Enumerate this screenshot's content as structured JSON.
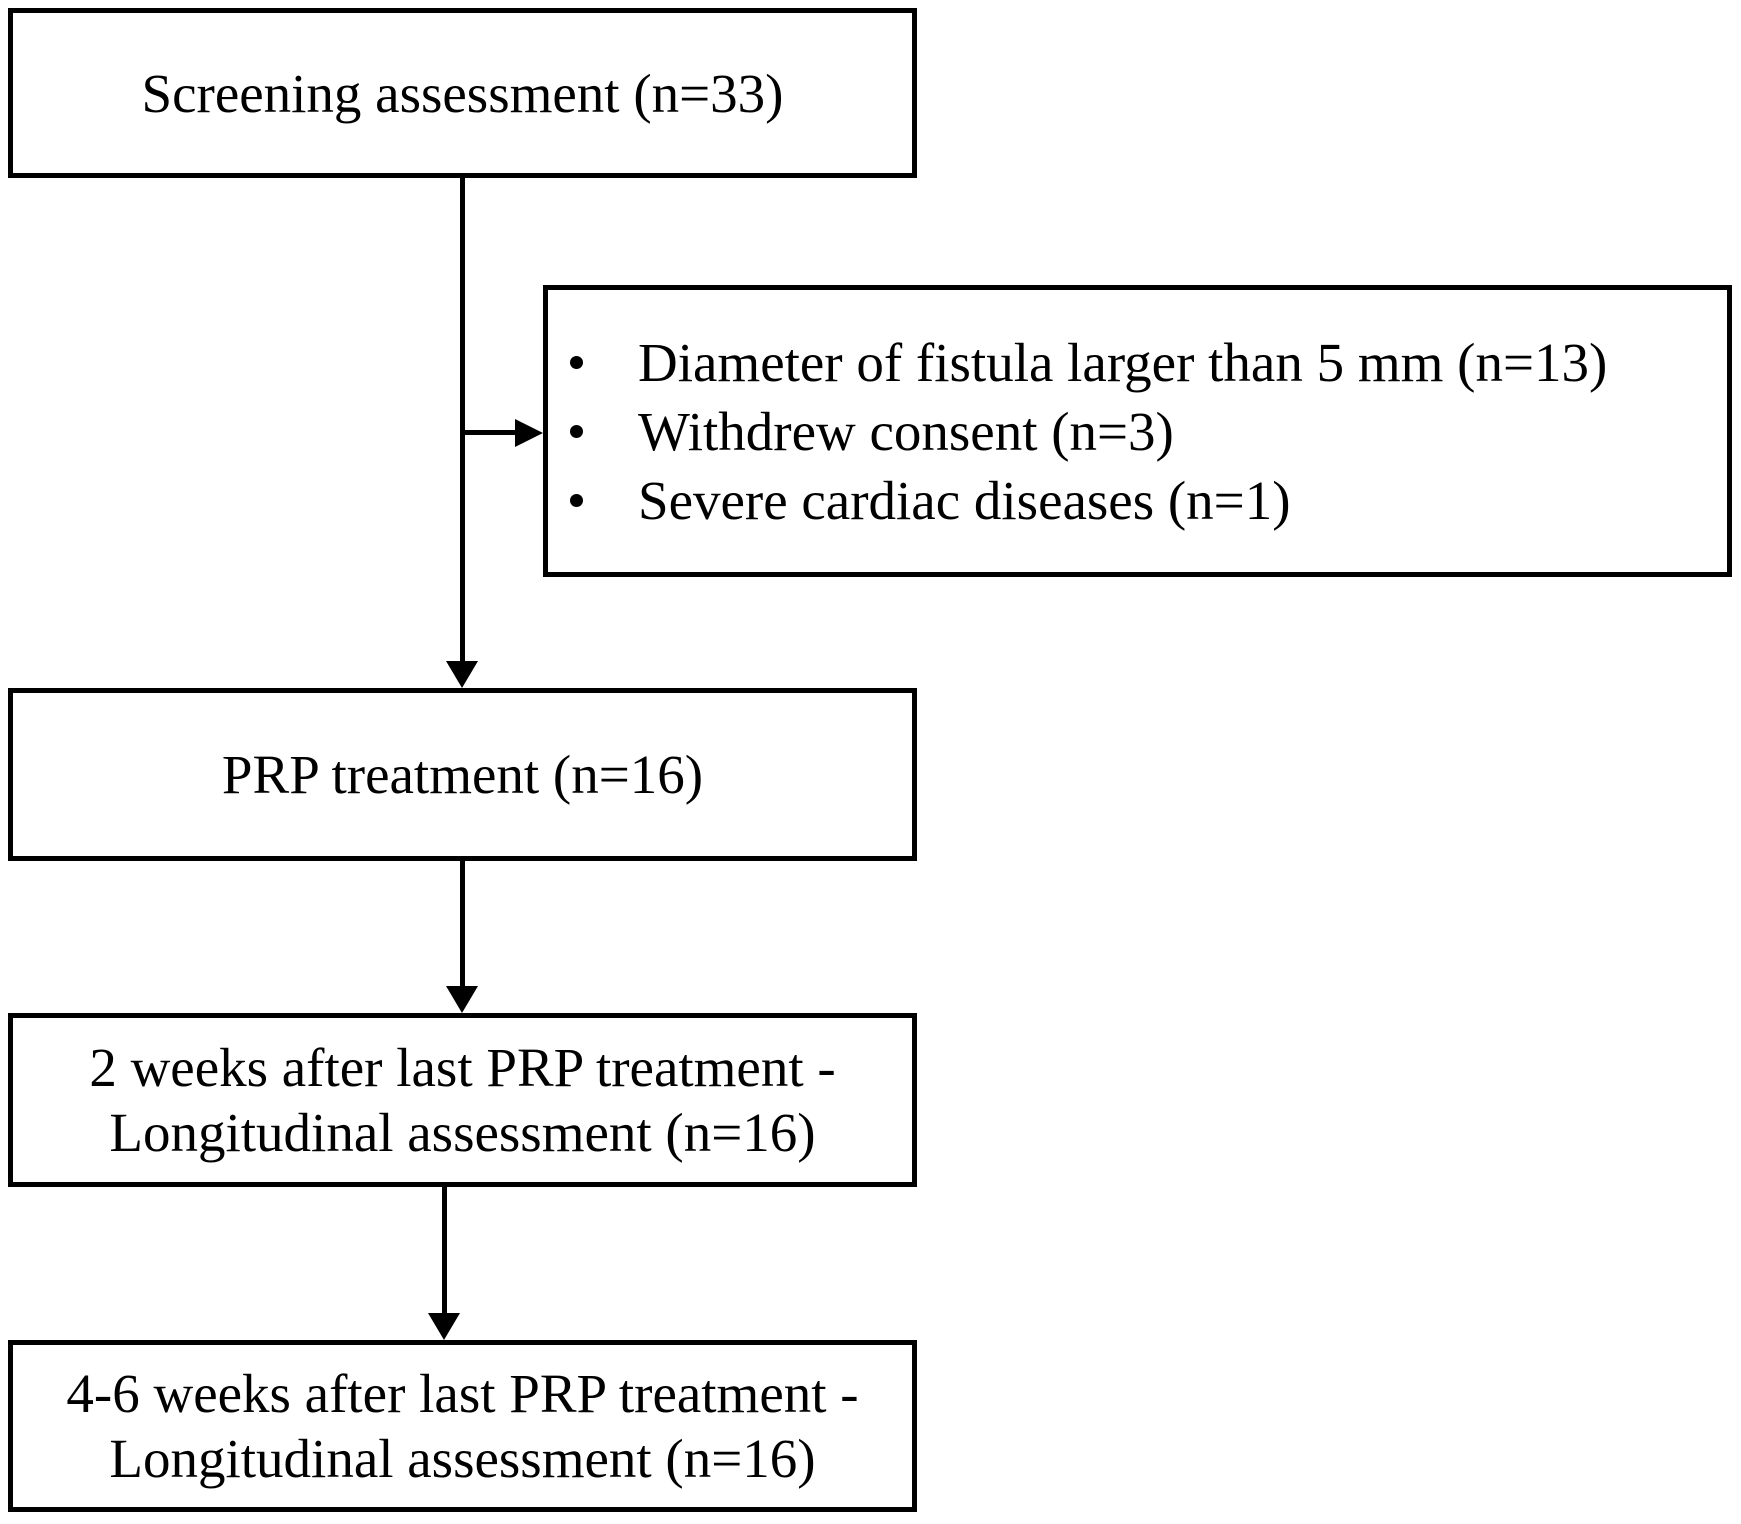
{
  "flowchart": {
    "screening": {
      "label": "Screening assessment (n=33)"
    },
    "exclusions": {
      "items": [
        "Diameter of fistula larger than 5 mm (n=13)",
        "Withdrew consent (n=3)",
        "Severe cardiac diseases (n=1)"
      ]
    },
    "treatment": {
      "label": "PRP treatment (n=16)"
    },
    "followup_2w": {
      "line1": "2 weeks after last PRP treatment -",
      "line2": "Longitudinal assessment (n=16)"
    },
    "followup_46w": {
      "line1": "4-6 weeks after last PRP treatment -",
      "line2": "Longitudinal assessment (n=16)"
    },
    "colors": {
      "background": "#ffffff",
      "line": "#000000",
      "text": "#000000"
    }
  }
}
